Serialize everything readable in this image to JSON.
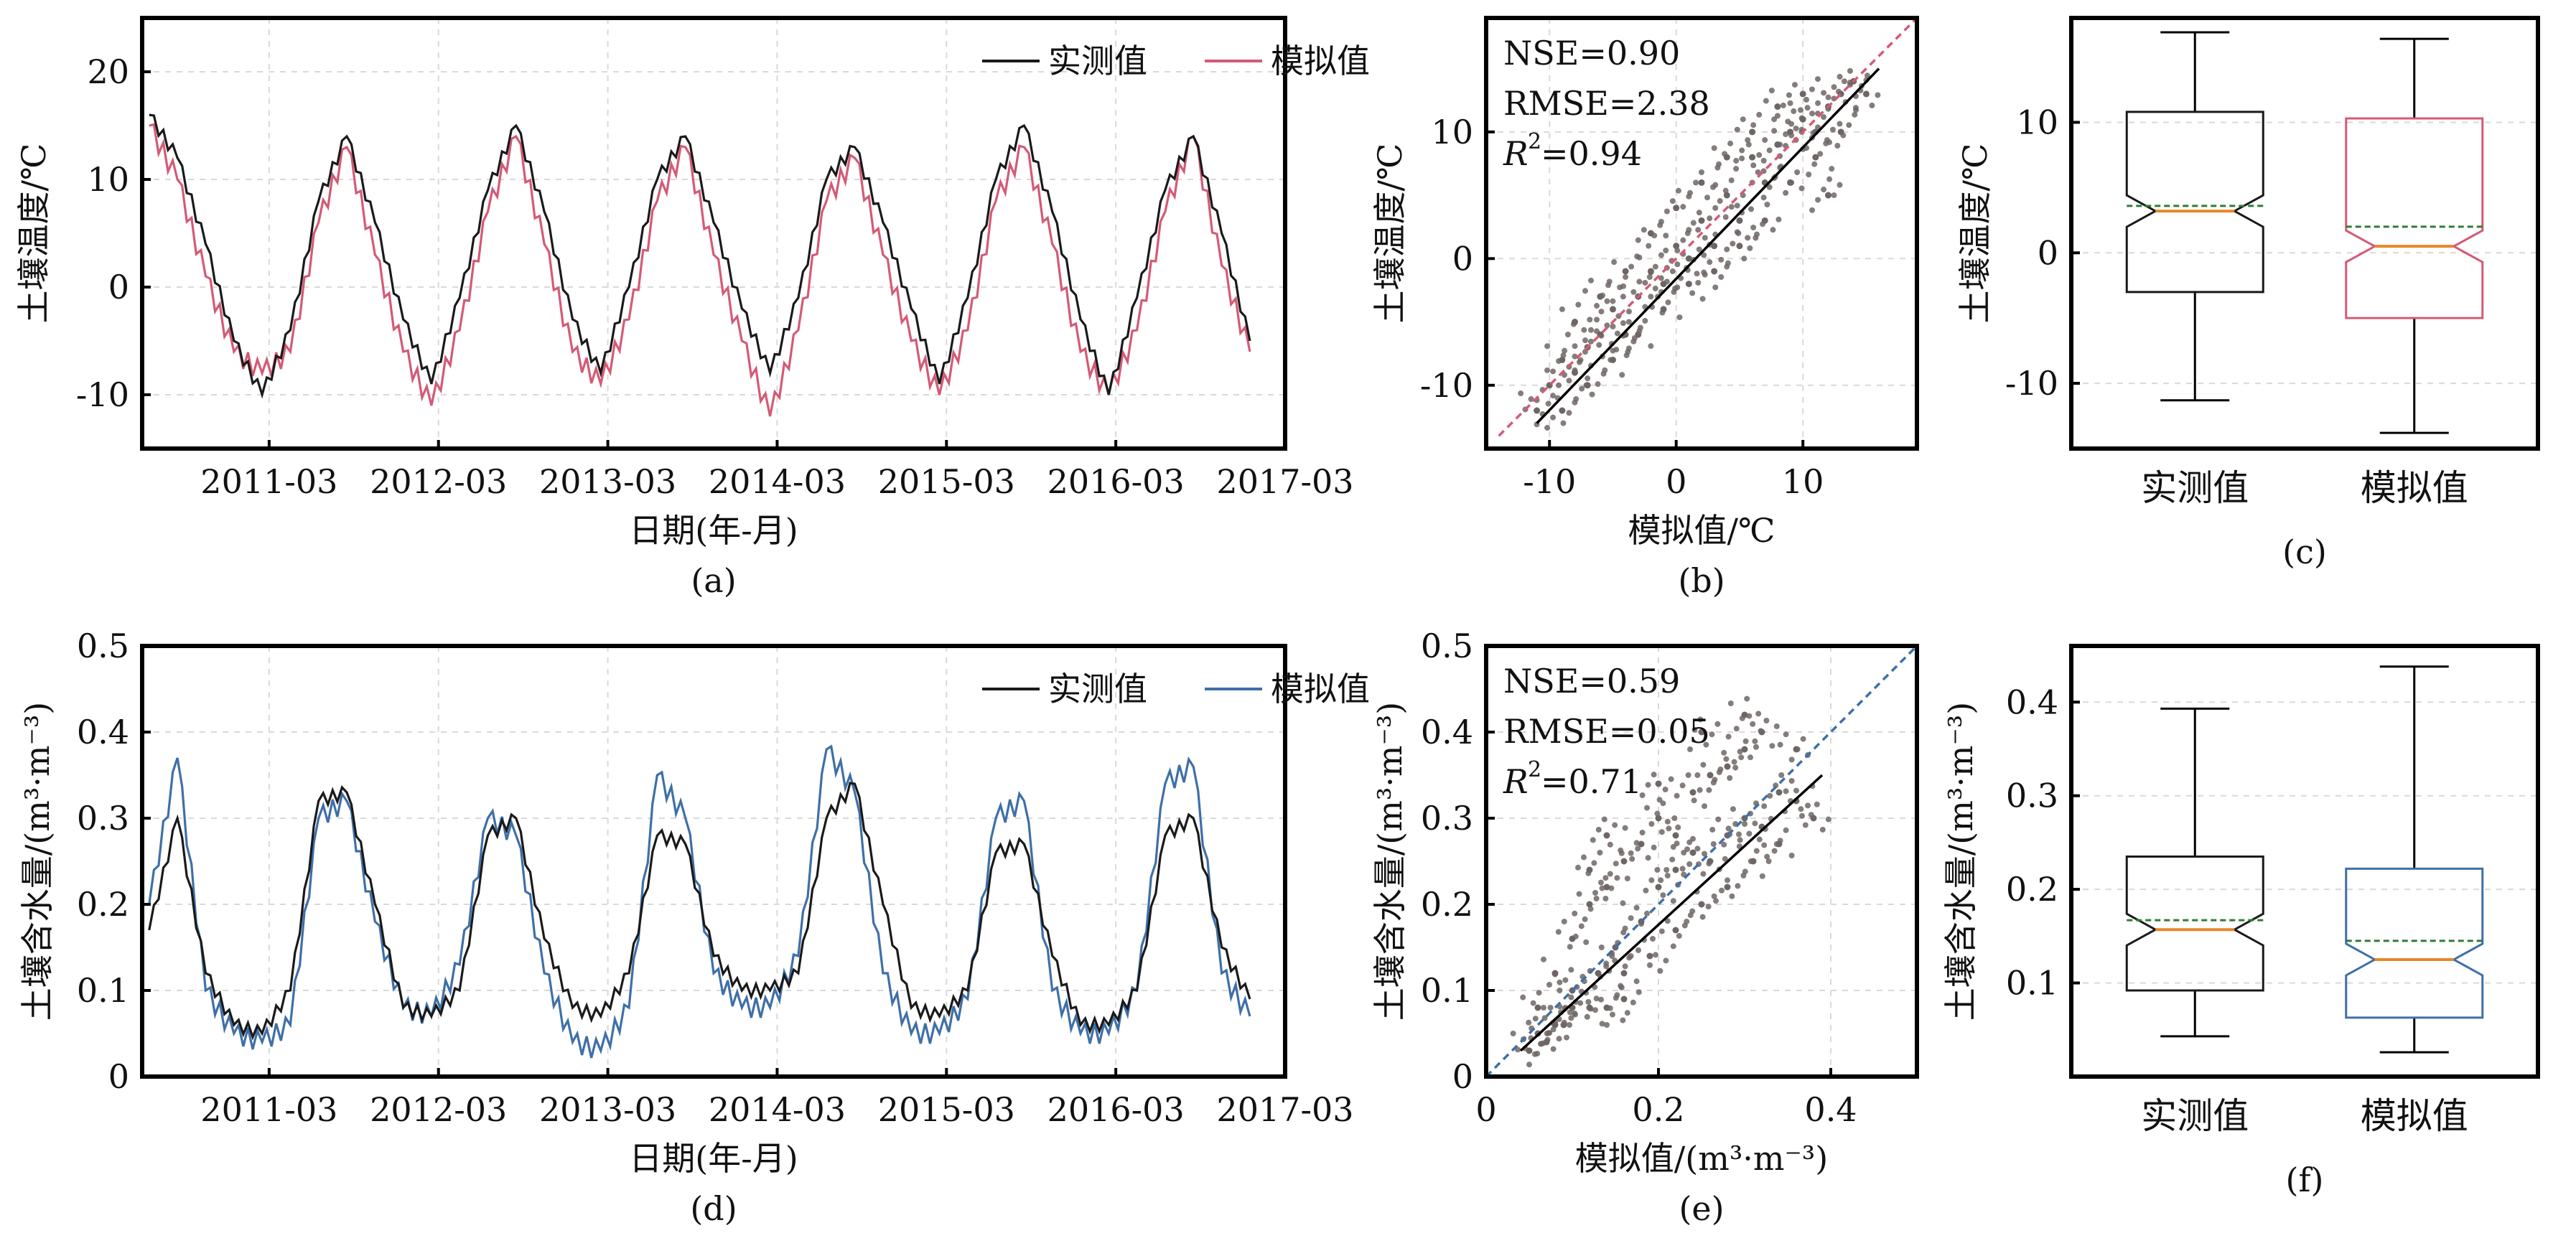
{
  "colors": {
    "observed": "#1a1a1a",
    "sim_temp": "#d45a75",
    "sim_moist": "#3f6fa8",
    "median": "#e8872a",
    "mean": "#2e7d32",
    "scatter": "#6e6664",
    "grid": "#d9d9d9"
  },
  "chart_data": [
    {
      "panel": "a",
      "type": "line",
      "caption": "(a)",
      "xlabel": "日期(年-月)",
      "ylabel": "土壤温度/℃",
      "xticks": [
        "2011-03",
        "2012-03",
        "2013-03",
        "2014-03",
        "2015-03",
        "2016-03",
        "2017-03"
      ],
      "xlim": [
        "2010-06",
        "2017-03"
      ],
      "ylim": [
        -15,
        25
      ],
      "yticks": [
        -10,
        0,
        10,
        20
      ],
      "series": [
        {
          "name": "实测值",
          "x": [
            "2010-06",
            "2010-08",
            "2010-10",
            "2010-12",
            "2011-02",
            "2011-04",
            "2011-06",
            "2011-08",
            "2011-10",
            "2011-12",
            "2012-02",
            "2012-04",
            "2012-06",
            "2012-08",
            "2012-10",
            "2012-12",
            "2013-02",
            "2013-04",
            "2013-06",
            "2013-08",
            "2013-10",
            "2013-12",
            "2014-02",
            "2014-04",
            "2014-06",
            "2014-08",
            "2014-10",
            "2014-12",
            "2015-02",
            "2015-04",
            "2015-06",
            "2015-08",
            "2015-10",
            "2015-12",
            "2016-02",
            "2016-04",
            "2016-06",
            "2016-08",
            "2016-10",
            "2016-12"
          ],
          "values": [
            16,
            12,
            4,
            -5,
            -10,
            -4,
            8,
            14,
            6,
            -3,
            -9,
            -1,
            9,
            15,
            7,
            -3,
            -8,
            0,
            10,
            14,
            6,
            -2,
            -8,
            -1,
            10,
            13,
            6,
            -2,
            -9,
            -1,
            10,
            15,
            7,
            -3,
            -10,
            -1,
            9,
            14,
            5,
            -5
          ]
        },
        {
          "name": "模拟值",
          "x": [
            "2010-06",
            "2010-08",
            "2010-10",
            "2010-12",
            "2011-02",
            "2011-04",
            "2011-06",
            "2011-08",
            "2011-10",
            "2011-12",
            "2012-02",
            "2012-04",
            "2012-06",
            "2012-08",
            "2012-10",
            "2012-12",
            "2013-02",
            "2013-04",
            "2013-06",
            "2013-08",
            "2013-10",
            "2013-12",
            "2014-02",
            "2014-04",
            "2014-06",
            "2014-08",
            "2014-10",
            "2014-12",
            "2015-02",
            "2015-04",
            "2015-06",
            "2015-08",
            "2015-10",
            "2015-12",
            "2016-02",
            "2016-04",
            "2016-06",
            "2016-08",
            "2016-10",
            "2016-12"
          ],
          "values": [
            15,
            10,
            1,
            -6,
            -8,
            -6,
            6,
            13,
            3,
            -6,
            -11,
            -4,
            7,
            14,
            4,
            -6,
            -9,
            -3,
            8,
            13,
            3,
            -5,
            -12,
            -4,
            8,
            12,
            3,
            -5,
            -10,
            -4,
            8,
            13,
            4,
            -6,
            -10,
            -4,
            7,
            14,
            2,
            -6
          ]
        }
      ],
      "legend": "top-right",
      "grid": true
    },
    {
      "panel": "b",
      "type": "scatter",
      "caption": "(b)",
      "xlabel": "模拟值/℃",
      "ylabel": "土壤温度/℃",
      "xlim": [
        -15,
        19
      ],
      "ylim": [
        -15,
        19
      ],
      "xticks": [
        -10,
        0,
        10
      ],
      "yticks": [
        -10,
        0,
        10
      ],
      "annotations": [
        "NSE=0.90",
        "RMSE=2.38",
        "R",
        "2",
        "=0.94"
      ],
      "fit_line": {
        "x": [
          -11,
          16
        ],
        "y": [
          -13,
          15
        ]
      },
      "one_to_one": {
        "x": [
          -14,
          19
        ],
        "y": [
          -14,
          19
        ]
      },
      "points": [
        [
          -11,
          -12
        ],
        [
          -10,
          -10
        ],
        [
          -9,
          -8
        ],
        [
          -8,
          -9
        ],
        [
          -7,
          -7
        ],
        [
          -6,
          -6
        ],
        [
          -5,
          -4
        ],
        [
          -4,
          -6
        ],
        [
          -3,
          -3
        ],
        [
          -2,
          -1
        ],
        [
          -1,
          -2
        ],
        [
          0,
          1
        ],
        [
          1,
          0
        ],
        [
          2,
          3
        ],
        [
          3,
          1
        ],
        [
          4,
          5
        ],
        [
          5,
          3
        ],
        [
          6,
          8
        ],
        [
          7,
          6
        ],
        [
          8,
          9
        ],
        [
          9,
          10
        ],
        [
          10,
          11
        ],
        [
          11,
          10
        ],
        [
          12,
          12
        ],
        [
          13,
          13
        ],
        [
          14,
          14
        ],
        [
          15,
          13
        ],
        [
          -8,
          -5
        ],
        [
          -6,
          -3
        ],
        [
          -4,
          -1
        ],
        [
          -2,
          2
        ],
        [
          0,
          4
        ],
        [
          2,
          6
        ],
        [
          4,
          8
        ],
        [
          6,
          10
        ],
        [
          8,
          12
        ],
        [
          10,
          13
        ],
        [
          -9,
          -12
        ],
        [
          -7,
          -10
        ],
        [
          -5,
          -8
        ],
        [
          -3,
          -6
        ],
        [
          -1,
          -4
        ],
        [
          1,
          -2
        ],
        [
          3,
          -1
        ],
        [
          5,
          1
        ],
        [
          7,
          3
        ],
        [
          9,
          6
        ],
        [
          11,
          8
        ],
        [
          13,
          10
        ],
        [
          12,
          5
        ]
      ],
      "grid": true
    },
    {
      "panel": "c",
      "type": "box",
      "caption": "(c)",
      "ylabel": "土壤温度/℃",
      "categories": [
        "实测值",
        "模拟值"
      ],
      "ylim": [
        -15,
        18
      ],
      "yticks": [
        -10,
        0,
        10
      ],
      "boxes": [
        {
          "min": -11.3,
          "q1": -3,
          "median": 3.2,
          "mean": 3.6,
          "q3": 10.8,
          "max": 16.9
        },
        {
          "min": -13.8,
          "q1": -5,
          "median": 0.5,
          "mean": 2.0,
          "q3": 10.3,
          "max": 16.4
        }
      ]
    },
    {
      "panel": "d",
      "type": "line",
      "caption": "(d)",
      "xlabel": "日期(年-月)",
      "ylabel": "土壤含水量/(m³·m⁻³)",
      "xticks": [
        "2011-03",
        "2012-03",
        "2013-03",
        "2014-03",
        "2015-03",
        "2016-03",
        "2017-03"
      ],
      "xlim": [
        "2010-06",
        "2017-03"
      ],
      "ylim": [
        0,
        0.5
      ],
      "yticks": [
        0,
        0.1,
        0.2,
        0.3,
        0.4,
        0.5
      ],
      "series": [
        {
          "name": "实测值",
          "x": [
            "2010-06",
            "2010-08",
            "2010-10",
            "2010-12",
            "2011-02",
            "2011-04",
            "2011-06",
            "2011-08",
            "2011-10",
            "2011-12",
            "2012-02",
            "2012-04",
            "2012-06",
            "2012-08",
            "2012-10",
            "2012-12",
            "2013-02",
            "2013-04",
            "2013-06",
            "2013-08",
            "2013-10",
            "2013-12",
            "2014-02",
            "2014-04",
            "2014-06",
            "2014-08",
            "2014-10",
            "2014-12",
            "2015-02",
            "2015-04",
            "2015-06",
            "2015-08",
            "2015-10",
            "2015-12",
            "2016-02",
            "2016-04",
            "2016-06",
            "2016-08",
            "2016-10",
            "2016-12"
          ],
          "values": [
            0.17,
            0.3,
            0.12,
            0.06,
            0.05,
            0.1,
            0.32,
            0.33,
            0.2,
            0.08,
            0.07,
            0.1,
            0.28,
            0.3,
            0.16,
            0.08,
            0.07,
            0.12,
            0.28,
            0.27,
            0.14,
            0.1,
            0.1,
            0.12,
            0.3,
            0.34,
            0.2,
            0.08,
            0.07,
            0.1,
            0.26,
            0.27,
            0.14,
            0.06,
            0.06,
            0.1,
            0.28,
            0.3,
            0.15,
            0.09
          ]
        },
        {
          "name": "模拟值",
          "x": [
            "2010-06",
            "2010-08",
            "2010-10",
            "2010-12",
            "2011-02",
            "2011-04",
            "2011-06",
            "2011-08",
            "2011-10",
            "2011-12",
            "2012-02",
            "2012-04",
            "2012-06",
            "2012-08",
            "2012-10",
            "2012-12",
            "2013-02",
            "2013-04",
            "2013-06",
            "2013-08",
            "2013-10",
            "2013-12",
            "2014-02",
            "2014-04",
            "2014-06",
            "2014-08",
            "2014-10",
            "2014-12",
            "2015-02",
            "2015-04",
            "2015-06",
            "2015-08",
            "2015-10",
            "2015-12",
            "2016-02",
            "2016-04",
            "2016-06",
            "2016-08",
            "2016-10",
            "2016-12"
          ],
          "values": [
            0.2,
            0.37,
            0.1,
            0.05,
            0.04,
            0.06,
            0.3,
            0.32,
            0.18,
            0.08,
            0.07,
            0.13,
            0.3,
            0.28,
            0.12,
            0.04,
            0.03,
            0.08,
            0.35,
            0.3,
            0.12,
            0.08,
            0.08,
            0.14,
            0.38,
            0.33,
            0.12,
            0.05,
            0.05,
            0.09,
            0.3,
            0.32,
            0.1,
            0.05,
            0.05,
            0.1,
            0.34,
            0.36,
            0.12,
            0.07
          ]
        }
      ],
      "legend": "top-right",
      "grid": true
    },
    {
      "panel": "e",
      "type": "scatter",
      "caption": "(e)",
      "xlabel": "模拟值/(m³·m⁻³)",
      "ylabel": "土壤含水量/(m³·m⁻³)",
      "xlim": [
        0,
        0.5
      ],
      "ylim": [
        0,
        0.5
      ],
      "xticks": [
        0,
        0.2,
        0.4
      ],
      "yticks": [
        0,
        0.1,
        0.2,
        0.3,
        0.4,
        0.5
      ],
      "annotations": [
        "NSE=0.59",
        "RMSE=0.05",
        "R",
        "2",
        "=0.71"
      ],
      "fit_line": {
        "x": [
          0.04,
          0.39
        ],
        "y": [
          0.03,
          0.35
        ]
      },
      "one_to_one": {
        "x": [
          0,
          0.5
        ],
        "y": [
          0,
          0.5
        ]
      },
      "points": [
        [
          0.05,
          0.03
        ],
        [
          0.06,
          0.05
        ],
        [
          0.07,
          0.04
        ],
        [
          0.08,
          0.06
        ],
        [
          0.1,
          0.08
        ],
        [
          0.12,
          0.08
        ],
        [
          0.14,
          0.08
        ],
        [
          0.16,
          0.09
        ],
        [
          0.06,
          0.08
        ],
        [
          0.08,
          0.12
        ],
        [
          0.1,
          0.16
        ],
        [
          0.12,
          0.2
        ],
        [
          0.14,
          0.22
        ],
        [
          0.16,
          0.25
        ],
        [
          0.18,
          0.27
        ],
        [
          0.2,
          0.3
        ],
        [
          0.22,
          0.28
        ],
        [
          0.24,
          0.33
        ],
        [
          0.26,
          0.35
        ],
        [
          0.28,
          0.36
        ],
        [
          0.3,
          0.38
        ],
        [
          0.32,
          0.4
        ],
        [
          0.15,
          0.15
        ],
        [
          0.18,
          0.18
        ],
        [
          0.2,
          0.22
        ],
        [
          0.22,
          0.24
        ],
        [
          0.24,
          0.26
        ],
        [
          0.26,
          0.25
        ],
        [
          0.28,
          0.28
        ],
        [
          0.3,
          0.3
        ],
        [
          0.32,
          0.29
        ],
        [
          0.34,
          0.33
        ],
        [
          0.36,
          0.32
        ],
        [
          0.38,
          0.3
        ],
        [
          0.16,
          0.12
        ],
        [
          0.19,
          0.14
        ],
        [
          0.22,
          0.17
        ],
        [
          0.25,
          0.2
        ],
        [
          0.28,
          0.22
        ],
        [
          0.31,
          0.25
        ],
        [
          0.34,
          0.27
        ],
        [
          0.12,
          0.24
        ],
        [
          0.14,
          0.28
        ],
        [
          0.2,
          0.34
        ],
        [
          0.25,
          0.4
        ],
        [
          0.3,
          0.42
        ],
        [
          0.36,
          0.38
        ],
        [
          0.1,
          0.1
        ],
        [
          0.13,
          0.12
        ],
        [
          0.09,
          0.06
        ]
      ],
      "grid": true
    },
    {
      "panel": "f",
      "type": "box",
      "caption": "(f)",
      "ylabel": "土壤含水量/(m³·m⁻³)",
      "categories": [
        "实测值",
        "模拟值"
      ],
      "ylim": [
        0,
        0.46
      ],
      "yticks": [
        0.1,
        0.2,
        0.3,
        0.4
      ],
      "boxes": [
        {
          "min": 0.043,
          "q1": 0.092,
          "median": 0.157,
          "mean": 0.167,
          "q3": 0.235,
          "max": 0.393
        },
        {
          "min": 0.026,
          "q1": 0.063,
          "median": 0.125,
          "mean": 0.145,
          "q3": 0.222,
          "max": 0.438
        }
      ]
    }
  ]
}
